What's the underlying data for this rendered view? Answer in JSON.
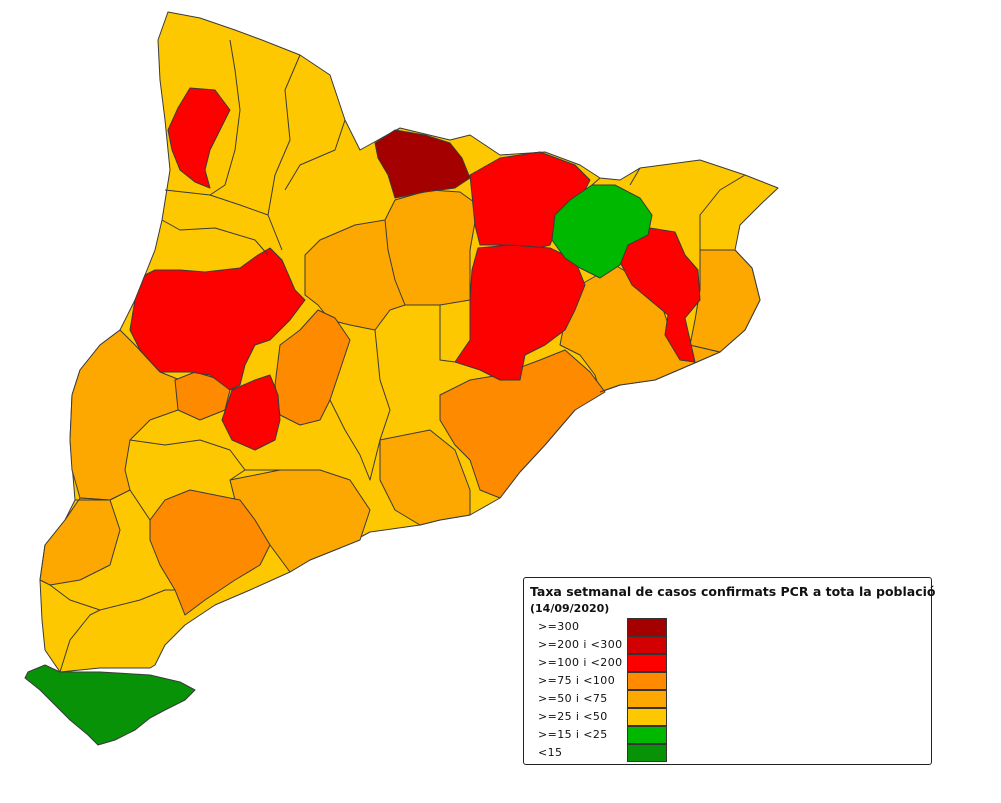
{
  "colors": {
    "c300": "#a50000",
    "c200": "#d20000",
    "c100": "#fd0000",
    "c75": "#fe8a00",
    "c50": "#fda800",
    "c25": "#fec800",
    "c15": "#00b800",
    "c0": "#089208",
    "border": "#3a3a3a"
  },
  "legend": {
    "title": "Taxa setmanal de casos confirmats PCR a tota la població",
    "subtitle": "(14/09/2020)",
    "items": [
      {
        "label": ">=300",
        "color": "#a50000"
      },
      {
        "label": ">=200 i <300",
        "color": "#d20000"
      },
      {
        "label": ">=100 i <200",
        "color": "#fd0000"
      },
      {
        "label": ">=75 i <100",
        "color": "#fe8a00"
      },
      {
        "label": ">=50 i <75",
        "color": "#fda800"
      },
      {
        "label": ">=25 i <50",
        "color": "#fec800"
      },
      {
        "label": ">=15 i <25",
        "color": "#00b800"
      },
      {
        "label": "<15",
        "color": "#089208"
      }
    ]
  }
}
